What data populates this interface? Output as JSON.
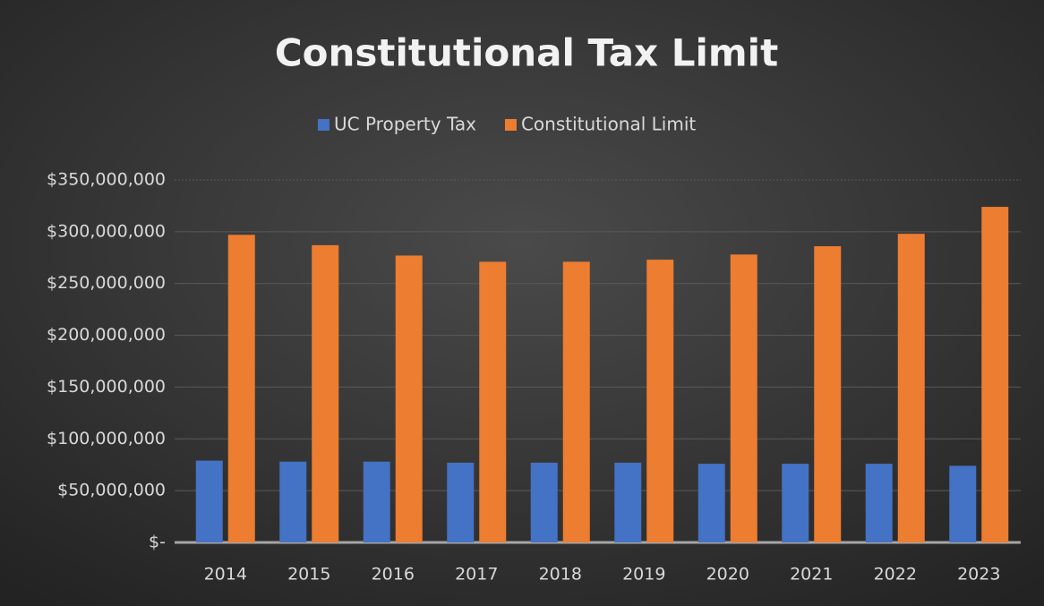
{
  "chart_data": {
    "type": "bar",
    "title": "Constitutional Tax Limit",
    "categories": [
      "2014",
      "2015",
      "2016",
      "2017",
      "2018",
      "2019",
      "2020",
      "2021",
      "2022",
      "2023"
    ],
    "series": [
      {
        "name": "UC Property Tax",
        "color": "#4472c4",
        "values": [
          79000000,
          78000000,
          78000000,
          77000000,
          77000000,
          77000000,
          76000000,
          76000000,
          76000000,
          74000000
        ]
      },
      {
        "name": "Constitutional Limit",
        "color": "#ed7d31",
        "values": [
          297000000,
          287000000,
          277000000,
          271000000,
          271000000,
          273000000,
          278000000,
          286000000,
          298000000,
          324000000
        ]
      }
    ],
    "ylim": [
      0,
      350000000
    ],
    "yticks": [
      {
        "value": 0,
        "label": "$-"
      },
      {
        "value": 50000000,
        "label": "$50,000,000"
      },
      {
        "value": 100000000,
        "label": "$100,000,000"
      },
      {
        "value": 150000000,
        "label": "$150,000,000"
      },
      {
        "value": 200000000,
        "label": "$200,000,000"
      },
      {
        "value": 250000000,
        "label": "$250,000,000"
      },
      {
        "value": 300000000,
        "label": "$300,000,000"
      },
      {
        "value": 350000000,
        "label": "$350,000,000"
      }
    ],
    "grid": true,
    "legend": "top"
  }
}
